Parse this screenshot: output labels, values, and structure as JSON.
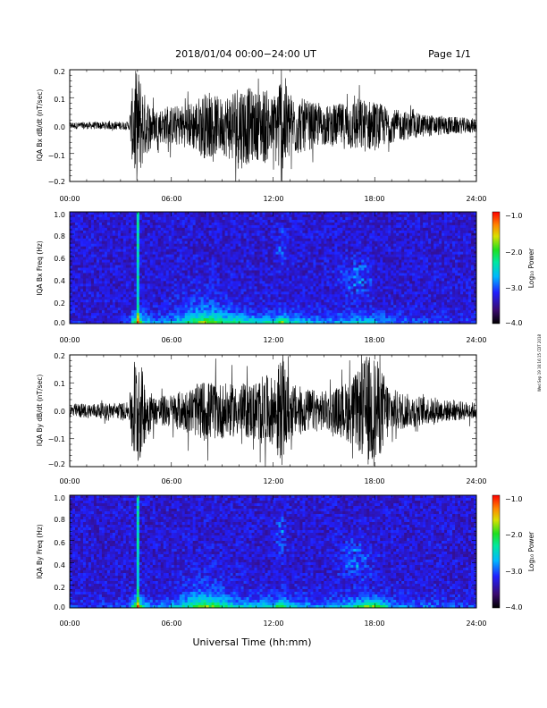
{
  "header": {
    "title": "2018/01/04  00:00−24:00 UT",
    "page": "Page 1/1"
  },
  "footer": {
    "xlabel": "Universal Time (hh:mm)"
  },
  "side_note": "Wed Sep 19 16:16:15 CDT 2018",
  "chart_data": [
    {
      "type": "line",
      "ylabel": "IQA Bx dB/dt (nT/sec)",
      "xlim": [
        0,
        24
      ],
      "ylim": [
        -0.2,
        0.2
      ],
      "x_ticks": [
        "00:00",
        "06:00",
        "12:00",
        "18:00",
        "24:00"
      ],
      "y_ticks": [
        "0.2",
        "0.1",
        "0.0",
        "−0.1",
        "−0.2"
      ],
      "activity_envelope": {
        "hours": [
          0,
          3.5,
          3.8,
          4.1,
          4.4,
          5,
          6,
          7,
          8,
          9,
          10,
          11,
          11.5,
          12,
          12.5,
          13,
          14,
          15,
          16,
          17,
          18,
          19,
          20,
          21,
          22,
          23,
          24
        ],
        "amplitude": [
          0.012,
          0.015,
          0.2,
          0.2,
          0.12,
          0.06,
          0.07,
          0.08,
          0.12,
          0.1,
          0.16,
          0.12,
          0.14,
          0.1,
          0.22,
          0.12,
          0.09,
          0.07,
          0.08,
          0.1,
          0.09,
          0.06,
          0.05,
          0.04,
          0.035,
          0.03,
          0.025
        ]
      }
    },
    {
      "type": "heatmap",
      "ylabel": "IQA Bx Freq (Hz)",
      "xlim": [
        0,
        24
      ],
      "ylim": [
        0,
        1.0
      ],
      "x_ticks": [
        "00:00",
        "06:00",
        "12:00",
        "18:00",
        "24:00"
      ],
      "y_ticks": [
        "1.0",
        "0.8",
        "0.6",
        "0.4",
        "0.2",
        "0.0"
      ],
      "colorbar": {
        "label": "Log₁₀ Power",
        "min": -4.0,
        "max": -1.0,
        "ticks": [
          "−1.0",
          "−2.0",
          "−3.0",
          "−4.0"
        ]
      }
    },
    {
      "type": "line",
      "ylabel": "IQA By dB/dt (nT/sec)",
      "xlim": [
        0,
        24
      ],
      "ylim": [
        -0.2,
        0.2
      ],
      "x_ticks": [
        "00:00",
        "06:00",
        "12:00",
        "18:00",
        "24:00"
      ],
      "y_ticks": [
        "0.2",
        "0.1",
        "0.0",
        "−0.1",
        "−0.2"
      ],
      "activity_envelope": {
        "hours": [
          0,
          3.5,
          3.8,
          4.1,
          4.4,
          5,
          6,
          7,
          8,
          9,
          10,
          11,
          11.5,
          12,
          12.5,
          13,
          14,
          15,
          16,
          17,
          17.5,
          18,
          18.5,
          19,
          20,
          21,
          22,
          23,
          24
        ],
        "amplitude": [
          0.025,
          0.03,
          0.2,
          0.2,
          0.12,
          0.05,
          0.06,
          0.08,
          0.11,
          0.1,
          0.09,
          0.11,
          0.13,
          0.12,
          0.2,
          0.1,
          0.08,
          0.07,
          0.09,
          0.14,
          0.2,
          0.2,
          0.14,
          0.08,
          0.06,
          0.05,
          0.04,
          0.035,
          0.03
        ]
      }
    },
    {
      "type": "heatmap",
      "ylabel": "IQA By Freq (Hz)",
      "xlim": [
        0,
        24
      ],
      "ylim": [
        0,
        1.0
      ],
      "x_ticks": [
        "00:00",
        "06:00",
        "12:00",
        "18:00",
        "24:00"
      ],
      "y_ticks": [
        "1.0",
        "0.8",
        "0.6",
        "0.4",
        "0.2",
        "0.0"
      ],
      "colorbar": {
        "label": "Log₁₀ Power",
        "min": -4.0,
        "max": -1.0,
        "ticks": [
          "−1.0",
          "−2.0",
          "−3.0",
          "−4.0"
        ]
      }
    }
  ]
}
